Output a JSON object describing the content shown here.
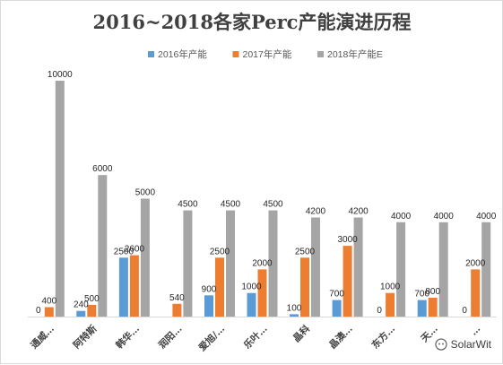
{
  "chart_data": {
    "type": "bar",
    "title": "2016~2018各家Perc产能演进历程",
    "categories": [
      "通威…",
      "阿特斯",
      "韩华…",
      "润阳…",
      "爱旭/…",
      "乐叶…",
      "晶科",
      "晶澳…",
      "东方…",
      "天…",
      "…"
    ],
    "series": [
      {
        "name": "2016年产能",
        "color": "#5b9bd5",
        "values": [
          0,
          240,
          2500,
          0,
          900,
          1000,
          100,
          700,
          0,
          700,
          0
        ]
      },
      {
        "name": "2017年产能",
        "color": "#ed7d31",
        "values": [
          400,
          500,
          2600,
          540,
          2500,
          2000,
          2500,
          3000,
          1000,
          800,
          2000
        ]
      },
      {
        "name": "2018年产能E",
        "color": "#a5a5a5",
        "values": [
          10000,
          6000,
          5000,
          4500,
          4500,
          4500,
          4200,
          4200,
          4000,
          4000,
          4000
        ]
      }
    ],
    "value_labels": [
      [
        "0",
        "240",
        "2500",
        "",
        "900",
        "1000",
        "100",
        "700",
        "0",
        "700",
        "0"
      ],
      [
        "400",
        "500",
        "2600",
        "540",
        "2500",
        "2000",
        "2500",
        "3000",
        "1000",
        "800",
        "2000"
      ],
      [
        "10000",
        "6000",
        "5000",
        "4500",
        "4500",
        "4500",
        "4200",
        "4200",
        "4000",
        "4000",
        "4000"
      ]
    ],
    "ylim": [
      0,
      10500
    ],
    "grid": false,
    "legend": "top-right"
  },
  "watermark": {
    "text": "SolarWit"
  }
}
